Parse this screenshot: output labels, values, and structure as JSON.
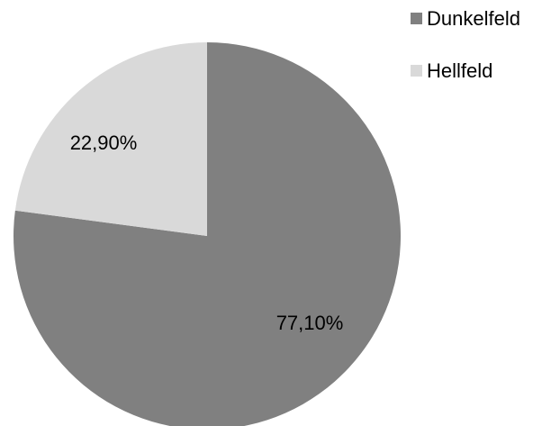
{
  "chart_data": {
    "type": "pie",
    "slices": [
      {
        "label": "Dunkelfeld",
        "value": 77.1,
        "display": "77,10%",
        "color": "#808080"
      },
      {
        "label": "Hellfeld",
        "value": 22.9,
        "display": "22,90%",
        "color": "#d9d9d9"
      }
    ],
    "start_angle_deg": 0,
    "direction": "clockwise",
    "legend_position": "top-right"
  }
}
